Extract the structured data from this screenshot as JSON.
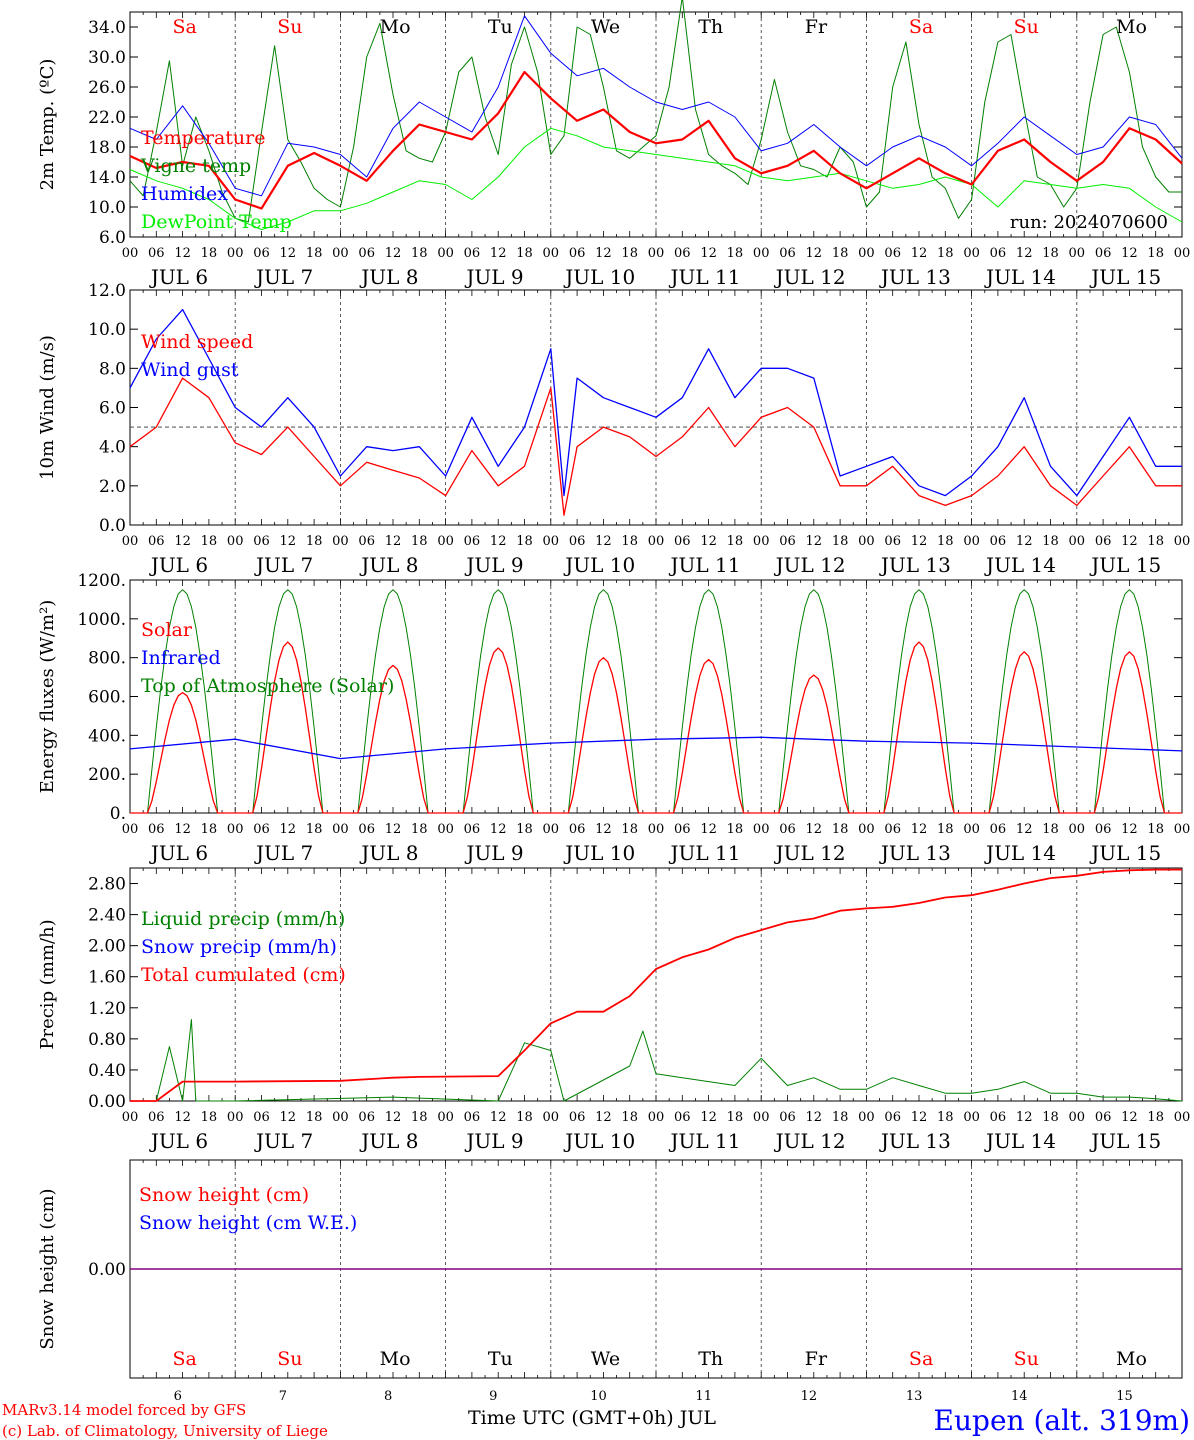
{
  "run_label": "run: 2024070600",
  "footer": {
    "model": "MARv3.14 model forced by GFS",
    "copyright": "(c) Lab. of Climatology, University of Liege",
    "xlabel": "Time UTC (GMT+0h) JUL",
    "station": "Eupen (alt. 319m)"
  },
  "days": [
    {
      "wd": "Sa",
      "date": "JUL  6",
      "num": "6",
      "weekend": true
    },
    {
      "wd": "Su",
      "date": "JUL  7",
      "num": "7",
      "weekend": true
    },
    {
      "wd": "Mo",
      "date": "JUL  8",
      "num": "8",
      "weekend": false
    },
    {
      "wd": "Tu",
      "date": "JUL  9",
      "num": "9",
      "weekend": false
    },
    {
      "wd": "We",
      "date": "JUL 10",
      "num": "10",
      "weekend": false
    },
    {
      "wd": "Th",
      "date": "JUL 11",
      "num": "11",
      "weekend": false
    },
    {
      "wd": "Fr",
      "date": "JUL 12",
      "num": "12",
      "weekend": false
    },
    {
      "wd": "Sa",
      "date": "JUL 13",
      "num": "13",
      "weekend": true
    },
    {
      "wd": "Su",
      "date": "JUL 14",
      "num": "14",
      "weekend": true
    },
    {
      "wd": "Mo",
      "date": "JUL 15",
      "num": "15",
      "weekend": false
    }
  ],
  "hour_ticks": [
    "00",
    "06",
    "12",
    "18"
  ],
  "colors": {
    "red": "#ff0000",
    "green": "#008000",
    "blue": "#0000ff",
    "lightgreen": "#00ee00",
    "purple": "#800080",
    "grid": "#555555"
  },
  "chart_data": [
    {
      "type": "line",
      "ylabel": "2m Temp. (ºC)",
      "ylim": [
        6,
        36
      ],
      "yticks": [
        "6.0",
        "10.0",
        "14.0",
        "18.0",
        "22.0",
        "26.0",
        "30.0",
        "34.0"
      ],
      "x_unit": "hours since JUL 6 00 UTC",
      "series": [
        {
          "name": "Temperature",
          "color": "red",
          "x": [
            0,
            6,
            12,
            18,
            24,
            30,
            36,
            42,
            48,
            54,
            60,
            66,
            72,
            78,
            84,
            90,
            96,
            102,
            108,
            114,
            120,
            126,
            132,
            138,
            144,
            150,
            156,
            162,
            168,
            174,
            180,
            186,
            192,
            198,
            204,
            210,
            216,
            222,
            228,
            234,
            240
          ],
          "y": [
            16.8,
            15.2,
            16.0,
            15.5,
            11.0,
            9.8,
            15.5,
            17.2,
            15.5,
            13.5,
            17.5,
            21.0,
            20.0,
            19.0,
            22.5,
            28.0,
            24.5,
            21.5,
            23.0,
            20.0,
            18.5,
            19.0,
            21.5,
            16.5,
            14.5,
            15.5,
            17.5,
            14.5,
            12.5,
            14.5,
            16.5,
            14.5,
            13.0,
            17.5,
            19.0,
            16.0,
            13.5,
            16.0,
            20.5,
            19.0,
            15.8
          ]
        },
        {
          "name": "Vigne temp",
          "color": "green",
          "x": [
            0,
            3,
            6,
            9,
            12,
            15,
            18,
            21,
            24,
            27,
            30,
            33,
            36,
            39,
            42,
            45,
            48,
            51,
            54,
            57,
            60,
            63,
            66,
            69,
            72,
            75,
            78,
            81,
            84,
            87,
            90,
            93,
            96,
            99,
            102,
            105,
            108,
            111,
            114,
            117,
            120,
            123,
            126,
            129,
            132,
            135,
            138,
            141,
            144,
            147,
            150,
            153,
            156,
            159,
            162,
            165,
            168,
            171,
            174,
            177,
            180,
            183,
            186,
            189,
            192,
            195,
            198,
            201,
            204,
            207,
            210,
            213,
            216,
            219,
            222,
            225,
            228,
            231,
            234,
            237,
            240
          ],
          "y": [
            13.5,
            11.5,
            20.0,
            29.5,
            15.5,
            22.0,
            17.5,
            12.0,
            8.5,
            8.0,
            20.0,
            31.5,
            19.0,
            16.0,
            12.5,
            11.0,
            10.0,
            18.0,
            30.0,
            34.5,
            25.0,
            17.5,
            16.5,
            16.0,
            20.0,
            28.0,
            30.0,
            22.0,
            17.0,
            29.0,
            34.0,
            28.0,
            17.0,
            19.5,
            34.0,
            33.0,
            26.0,
            17.5,
            16.5,
            18.0,
            19.5,
            26.0,
            38.0,
            23.0,
            17.0,
            15.5,
            14.5,
            13.0,
            19.0,
            27.0,
            20.0,
            15.5,
            15.0,
            14.0,
            18.0,
            16.0,
            10.0,
            12.0,
            26.0,
            32.0,
            21.0,
            14.0,
            12.5,
            8.5,
            11.0,
            24.0,
            32.0,
            33.0,
            23.0,
            14.0,
            13.0,
            10.0,
            12.5,
            24.0,
            33.0,
            34.0,
            28.0,
            18.0,
            14.0,
            12.0,
            12.0
          ]
        },
        {
          "name": "Humidex",
          "color": "blue",
          "x": [
            0,
            6,
            12,
            18,
            24,
            30,
            36,
            42,
            48,
            54,
            60,
            66,
            72,
            78,
            84,
            90,
            96,
            102,
            108,
            114,
            120,
            126,
            132,
            138,
            144,
            150,
            156,
            162,
            168,
            174,
            180,
            186,
            192,
            198,
            204,
            210,
            216,
            222,
            228,
            234,
            240
          ],
          "y": [
            20.5,
            19.0,
            23.5,
            18.5,
            12.5,
            11.5,
            18.5,
            18.0,
            17.0,
            14.0,
            20.5,
            24.0,
            22.0,
            20.0,
            26.0,
            35.5,
            30.5,
            27.5,
            28.5,
            26.0,
            24.0,
            23.0,
            24.0,
            22.0,
            17.5,
            18.5,
            21.0,
            18.0,
            15.5,
            18.0,
            19.5,
            18.0,
            15.5,
            18.5,
            22.0,
            19.5,
            17.0,
            18.0,
            22.0,
            21.0,
            16.5
          ]
        },
        {
          "name": "DewPoint Temp",
          "color": "lightgreen",
          "x": [
            0,
            6,
            12,
            18,
            24,
            30,
            36,
            42,
            48,
            54,
            60,
            66,
            72,
            78,
            84,
            90,
            96,
            102,
            108,
            114,
            120,
            126,
            132,
            138,
            144,
            150,
            156,
            162,
            168,
            174,
            180,
            186,
            192,
            198,
            204,
            210,
            216,
            222,
            228,
            234,
            240
          ],
          "y": [
            15.0,
            13.5,
            12.5,
            11.0,
            8.5,
            7.0,
            8.0,
            9.5,
            9.5,
            10.5,
            12.0,
            13.5,
            13.0,
            11.0,
            14.0,
            18.0,
            20.5,
            19.5,
            18.0,
            17.5,
            17.0,
            16.5,
            16.0,
            15.5,
            14.0,
            13.5,
            14.0,
            14.5,
            13.5,
            12.5,
            13.0,
            14.0,
            13.0,
            10.0,
            13.5,
            13.0,
            12.5,
            13.0,
            12.5,
            10.0,
            8.0
          ]
        }
      ]
    },
    {
      "type": "line",
      "ylabel": "10m Wind (m/s)",
      "ylim": [
        0,
        12
      ],
      "yticks": [
        "0.0",
        "2.0",
        "4.0",
        "6.0",
        "8.0",
        "10.0",
        "12.0"
      ],
      "reference_line": 5.0,
      "series": [
        {
          "name": "Wind speed",
          "color": "red",
          "x": [
            0,
            6,
            12,
            18,
            24,
            30,
            36,
            42,
            48,
            54,
            60,
            66,
            72,
            78,
            84,
            90,
            96,
            99,
            102,
            108,
            114,
            120,
            126,
            132,
            138,
            144,
            150,
            156,
            162,
            168,
            174,
            180,
            186,
            192,
            198,
            204,
            210,
            216,
            222,
            228,
            234,
            240
          ],
          "y": [
            4.0,
            5.0,
            7.5,
            6.5,
            4.2,
            3.6,
            5.0,
            3.5,
            2.0,
            3.2,
            2.8,
            2.4,
            1.5,
            3.8,
            2.0,
            3.0,
            7.0,
            0.5,
            4.0,
            5.0,
            4.5,
            3.5,
            4.5,
            6.0,
            4.0,
            5.5,
            6.0,
            5.0,
            2.0,
            2.0,
            3.0,
            1.5,
            1.0,
            1.5,
            2.5,
            4.0,
            2.0,
            1.0,
            2.5,
            4.0,
            2.0,
            2.0
          ]
        },
        {
          "name": "Wind gust",
          "color": "blue",
          "x": [
            0,
            6,
            12,
            18,
            24,
            30,
            36,
            42,
            48,
            54,
            60,
            66,
            72,
            78,
            84,
            90,
            96,
            99,
            102,
            108,
            114,
            120,
            126,
            132,
            138,
            144,
            150,
            156,
            162,
            168,
            174,
            180,
            186,
            192,
            198,
            204,
            210,
            216,
            222,
            228,
            234,
            240
          ],
          "y": [
            7.0,
            9.5,
            11.0,
            8.5,
            6.0,
            5.0,
            6.5,
            5.0,
            2.5,
            4.0,
            3.8,
            4.0,
            2.5,
            5.5,
            3.0,
            5.0,
            9.0,
            1.5,
            7.5,
            6.5,
            6.0,
            5.5,
            6.5,
            9.0,
            6.5,
            8.0,
            8.0,
            7.5,
            2.5,
            3.0,
            3.5,
            2.0,
            1.5,
            2.5,
            4.0,
            6.5,
            3.0,
            1.5,
            3.5,
            5.5,
            3.0,
            3.0
          ]
        }
      ]
    },
    {
      "type": "line",
      "ylabel": "Energy fluxes (W/m²)",
      "ylim": [
        0,
        1200
      ],
      "yticks": [
        "0.",
        "200.",
        "400.",
        "600.",
        "800.",
        "1000.",
        "1200."
      ],
      "solar_peaks_w_m2": [
        620,
        880,
        760,
        850,
        800,
        790,
        710,
        880,
        830,
        830
      ],
      "infrared_w_m2": [
        330,
        380,
        280,
        330,
        360,
        380,
        390,
        370,
        360,
        340,
        320
      ],
      "toa_peak_w_m2": 1150,
      "series": [
        {
          "name": "Solar",
          "color": "red"
        },
        {
          "name": "Infrared",
          "color": "blue"
        },
        {
          "name": "Top of Atmosphere (Solar)",
          "color": "green"
        }
      ]
    },
    {
      "type": "line",
      "ylabel": "Precip (mm/h)",
      "ylim": [
        0,
        3.0
      ],
      "yticks": [
        "0.00",
        "0.40",
        "0.80",
        "1.20",
        "1.60",
        "2.00",
        "2.40",
        "2.80"
      ],
      "series": [
        {
          "name": "Liquid precip (mm/h)",
          "color": "green",
          "x": [
            0,
            6,
            9,
            12,
            14,
            15,
            18,
            24,
            60,
            84,
            90,
            96,
            99,
            114,
            117,
            120,
            126,
            132,
            138,
            144,
            150,
            156,
            162,
            168,
            174,
            180,
            186,
            192,
            198,
            204,
            210,
            216,
            222,
            228,
            234,
            240
          ],
          "y": [
            0.0,
            0.0,
            0.7,
            0.0,
            1.05,
            0.0,
            0.0,
            0.0,
            0.05,
            0.0,
            0.75,
            0.65,
            0.0,
            0.45,
            0.9,
            0.35,
            0.3,
            0.25,
            0.2,
            0.55,
            0.2,
            0.3,
            0.15,
            0.15,
            0.3,
            0.2,
            0.1,
            0.1,
            0.15,
            0.25,
            0.1,
            0.1,
            0.05,
            0.05,
            0.03,
            0.0
          ]
        },
        {
          "name": "Snow precip (mm/h)",
          "color": "blue"
        },
        {
          "name": "Total cumulated (cm)",
          "color": "red",
          "x": [
            0,
            6,
            12,
            18,
            24,
            48,
            60,
            66,
            84,
            90,
            96,
            102,
            108,
            114,
            120,
            126,
            132,
            138,
            144,
            150,
            156,
            162,
            168,
            174,
            180,
            186,
            192,
            198,
            204,
            210,
            216,
            222,
            228,
            234,
            240
          ],
          "y": [
            0.0,
            0.0,
            0.25,
            0.25,
            0.25,
            0.26,
            0.3,
            0.31,
            0.32,
            0.65,
            1.0,
            1.15,
            1.15,
            1.35,
            1.7,
            1.85,
            1.95,
            2.1,
            2.2,
            2.3,
            2.35,
            2.45,
            2.48,
            2.5,
            2.55,
            2.62,
            2.65,
            2.72,
            2.8,
            2.87,
            2.9,
            2.95,
            2.97,
            2.98,
            2.98
          ]
        }
      ]
    },
    {
      "type": "line",
      "ylabel": "Snow height (cm)",
      "yticks": [
        "0.00"
      ],
      "series": [
        {
          "name": "Snow height (cm)",
          "color": "red",
          "value": 0.0
        },
        {
          "name": "Snow height (cm W.E.)",
          "color": "blue",
          "value": 0.0
        }
      ]
    }
  ]
}
